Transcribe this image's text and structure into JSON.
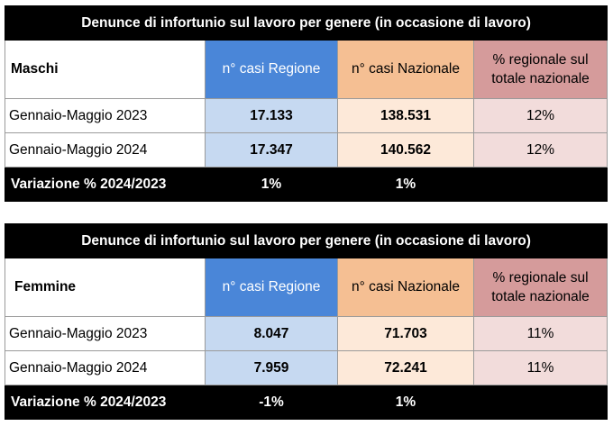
{
  "tables": [
    {
      "title": "Denunce di infortunio sul lavoro per genere (in occasione di lavoro)",
      "group_label": "Maschi",
      "headers": {
        "regione": "n° casi Regione",
        "nazionale": "n° casi Nazionale",
        "pct_line1": "% regionale sul",
        "pct_line2": "totale nazionale"
      },
      "rows": [
        {
          "period": "Gennaio-Maggio 2023",
          "regione": "17.133",
          "nazionale": "138.531",
          "pct": "12%"
        },
        {
          "period": "Gennaio-Maggio 2024",
          "regione": "17.347",
          "nazionale": "140.562",
          "pct": "12%"
        }
      ],
      "variation": {
        "label": "Variazione % 2024/2023",
        "regione": "1%",
        "nazionale": "1%",
        "pct": ""
      }
    },
    {
      "title": "Denunce di infortunio sul lavoro per genere (in occasione di lavoro)",
      "group_label": "Femmine",
      "headers": {
        "regione": "n° casi Regione",
        "nazionale": "n° casi Nazionale",
        "pct_line1": "% regionale sul",
        "pct_line2": "totale nazionale"
      },
      "rows": [
        {
          "period": "Gennaio-Maggio 2023",
          "regione": "8.047",
          "nazionale": "71.703",
          "pct": "11%"
        },
        {
          "period": "Gennaio-Maggio 2024",
          "regione": "7.959",
          "nazionale": "72.241",
          "pct": "11%"
        }
      ],
      "variation": {
        "label": "Variazione % 2024/2023",
        "regione": "-1%",
        "nazionale": "1%",
        "pct": ""
      }
    }
  ],
  "colors": {
    "title_bg": "#000000",
    "header_regione": "#4a86d8",
    "header_nazionale": "#f5bf93",
    "header_pct": "#d59b9b",
    "cell_regione": "#c6d9f1",
    "cell_nazionale": "#fde9d9",
    "cell_pct": "#f2dcdb"
  }
}
